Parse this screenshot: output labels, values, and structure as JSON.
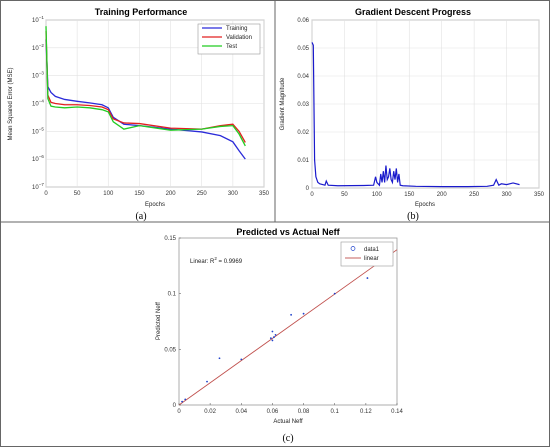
{
  "chart_data": [
    {
      "id": "a",
      "type": "line",
      "title": "Training Performance",
      "xlabel": "Epochs",
      "ylabel": "Mean Squared Error (MSE)",
      "caption": "(a)",
      "xlim": [
        0,
        350
      ],
      "ylim": [
        1e-07,
        0.1
      ],
      "yscale": "log",
      "xticks": [
        0,
        50,
        100,
        150,
        200,
        250,
        300,
        350
      ],
      "yticks": [
        {
          "value": 1e-07,
          "base": "10",
          "exp": "−7"
        },
        {
          "value": 1e-06,
          "base": "10",
          "exp": "−6"
        },
        {
          "value": 1e-05,
          "base": "10",
          "exp": "−5"
        },
        {
          "value": 0.0001,
          "base": "10",
          "exp": "−4"
        },
        {
          "value": 0.001,
          "base": "10",
          "exp": "−3"
        },
        {
          "value": 0.01,
          "base": "10",
          "exp": "−2"
        },
        {
          "value": 0.1,
          "base": "10",
          "exp": "−1"
        }
      ],
      "grid": true,
      "legend_position": "top-right",
      "series": [
        {
          "name": "Training",
          "color": "#2b2bd9",
          "x": [
            0,
            3,
            8,
            15,
            30,
            50,
            70,
            90,
            100,
            108,
            125,
            150,
            200,
            250,
            280,
            300,
            310,
            320
          ],
          "y": [
            0.02,
            0.0004,
            0.00025,
            0.00018,
            0.00014,
            0.00012,
            0.000105,
            9e-05,
            7e-05,
            3.2e-05,
            1.8e-05,
            1.6e-05,
            1.2e-05,
            9.5e-06,
            7e-06,
            4.2e-06,
            2e-06,
            1e-06
          ]
        },
        {
          "name": "Validation",
          "color": "#e22020",
          "x": [
            0,
            3,
            8,
            15,
            30,
            50,
            70,
            90,
            100,
            108,
            125,
            150,
            200,
            250,
            280,
            300,
            310,
            320
          ],
          "y": [
            0.04,
            0.0002,
            0.00011,
            0.0001,
            9e-05,
            9e-05,
            8.5e-05,
            7.5e-05,
            6e-05,
            2.8e-05,
            2e-05,
            1.9e-05,
            1.3e-05,
            1.2e-05,
            1.6e-05,
            1.8e-05,
            1e-05,
            4e-06
          ]
        },
        {
          "name": "Test",
          "color": "#22cc22",
          "x": [
            0,
            3,
            8,
            15,
            30,
            50,
            70,
            90,
            100,
            108,
            125,
            150,
            200,
            250,
            280,
            300,
            310,
            320
          ],
          "y": [
            0.06,
            0.00015,
            8e-05,
            7.5e-05,
            7e-05,
            7.5e-05,
            7e-05,
            6e-05,
            5e-05,
            2.2e-05,
            1.2e-05,
            1.6e-05,
            1.1e-05,
            1.2e-05,
            1.5e-05,
            1.6e-05,
            8e-06,
            3e-06
          ]
        }
      ]
    },
    {
      "id": "b",
      "type": "line",
      "title": "Gradient Descent Progress",
      "xlabel": "Epochs",
      "ylabel": "Gradient Magnitude",
      "caption": "(b)",
      "xlim": [
        0,
        350
      ],
      "ylim": [
        0,
        0.06
      ],
      "xticks": [
        0,
        50,
        100,
        150,
        200,
        250,
        300,
        350
      ],
      "yticks": [
        0,
        0.01,
        0.02,
        0.03,
        0.04,
        0.05,
        0.06
      ],
      "grid": true,
      "series": [
        {
          "name": "",
          "color": "#1a1acc",
          "x": [
            0,
            2,
            4,
            6,
            9,
            12,
            20,
            22,
            25,
            40,
            80,
            95,
            98,
            100,
            104,
            106,
            108,
            110,
            112,
            114,
            116,
            118,
            120,
            122,
            124,
            126,
            128,
            130,
            132,
            134,
            136,
            140,
            160,
            200,
            240,
            270,
            280,
            284,
            288,
            292,
            300,
            310,
            320
          ],
          "y": [
            0.052,
            0.051,
            0.01,
            0.004,
            0.002,
            0.0015,
            0.001,
            0.0025,
            0.001,
            0.0008,
            0.0009,
            0.001,
            0.004,
            0.002,
            0.001,
            0.005,
            0.002,
            0.006,
            0.002,
            0.008,
            0.003,
            0.004,
            0.007,
            0.003,
            0.002,
            0.006,
            0.003,
            0.007,
            0.002,
            0.005,
            0.001,
            0.0008,
            0.0006,
            0.0005,
            0.0005,
            0.0006,
            0.001,
            0.003,
            0.001,
            0.0015,
            0.0012,
            0.0018,
            0.0012
          ]
        }
      ]
    },
    {
      "id": "c",
      "type": "scatter",
      "title": "Predicted vs Actual Neff",
      "xlabel": "Actual Neff",
      "ylabel": "Predicted Neff",
      "caption": "(c)",
      "annotation": {
        "prefix": "Linear: R",
        "sup": "2",
        "suffix": " = 0.9969"
      },
      "xlim": [
        0,
        0.14
      ],
      "ylim": [
        0,
        0.15
      ],
      "xticks": [
        0,
        0.02,
        0.04,
        0.06,
        0.08,
        0.1,
        0.12,
        0.14
      ],
      "yticks": [
        0,
        0.05,
        0.1,
        0.15
      ],
      "grid": false,
      "legend_position": "top-right",
      "series": [
        {
          "name": "data1",
          "color": "#2244cc",
          "x": [
            0.002,
            0.004,
            0.018,
            0.026,
            0.04,
            0.059,
            0.06,
            0.061,
            0.06,
            0.062,
            0.072,
            0.08,
            0.1,
            0.121
          ],
          "y": [
            0.003,
            0.005,
            0.021,
            0.042,
            0.041,
            0.06,
            0.058,
            0.061,
            0.066,
            0.063,
            0.081,
            0.082,
            0.1,
            0.114
          ]
        },
        {
          "name": "linear",
          "color": "#c0504d",
          "x": [
            0,
            0.14
          ],
          "y": [
            0,
            0.1395
          ]
        }
      ]
    }
  ]
}
